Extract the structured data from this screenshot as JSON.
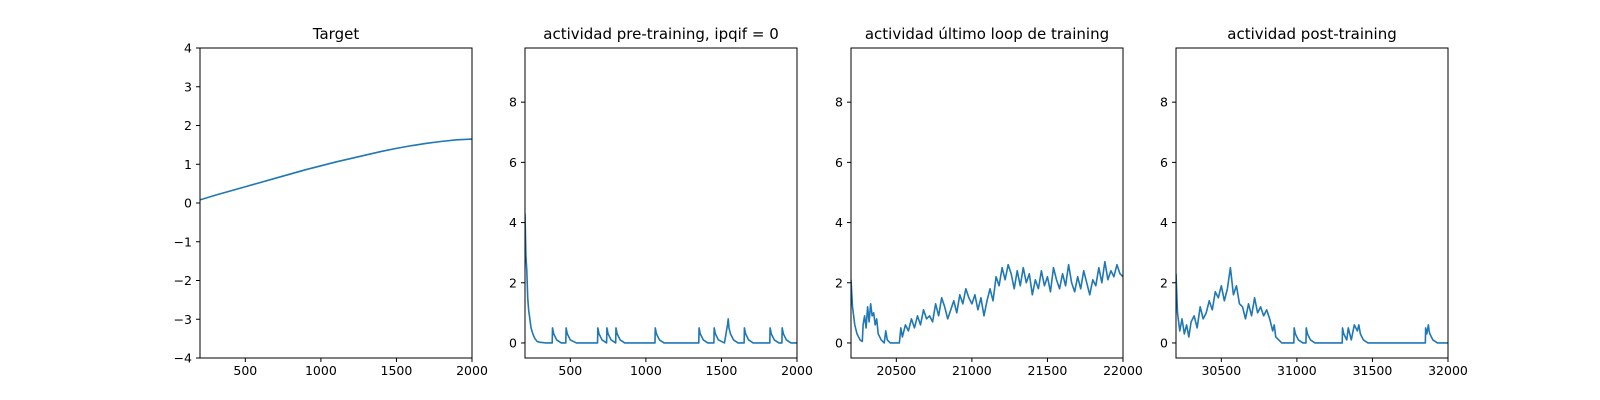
{
  "chart_data": [
    {
      "type": "line",
      "title": "Target",
      "xlabel": "",
      "ylabel": "",
      "xlim": [
        200,
        2000
      ],
      "ylim": [
        -4,
        4
      ],
      "xticks": [
        500,
        1000,
        1500,
        2000
      ],
      "yticks": [
        -4,
        -3,
        -2,
        -1,
        0,
        1,
        2,
        3,
        4
      ],
      "series": [
        {
          "color": "#1f77b4",
          "x": [
            200,
            300,
            400,
            500,
            600,
            700,
            800,
            900,
            1000,
            1100,
            1200,
            1300,
            1400,
            1500,
            1600,
            1700,
            1800,
            1900,
            2000
          ],
          "y": [
            0.08,
            0.2,
            0.31,
            0.42,
            0.53,
            0.64,
            0.75,
            0.86,
            0.96,
            1.06,
            1.15,
            1.24,
            1.33,
            1.41,
            1.48,
            1.54,
            1.59,
            1.63,
            1.65
          ]
        }
      ]
    },
    {
      "type": "line",
      "title": "actividad pre-training, ipqif = 0",
      "xlabel": "",
      "ylabel": "",
      "xlim": [
        200,
        2000
      ],
      "ylim": [
        -0.5,
        9.8
      ],
      "xticks": [
        500,
        1000,
        1500,
        2000
      ],
      "yticks": [
        0,
        2,
        4,
        6,
        8
      ],
      "series": [
        {
          "color": "#1f77b4",
          "x": [
            200,
            206,
            212,
            218,
            224,
            232,
            240,
            252,
            265,
            280,
            300,
            340,
            380,
            382,
            390,
            410,
            440,
            470,
            472,
            480,
            500,
            540,
            680,
            682,
            690,
            710,
            740,
            742,
            750,
            770,
            800,
            802,
            810,
            830,
            860,
            1060,
            1062,
            1070,
            1090,
            1120,
            1350,
            1352,
            1360,
            1380,
            1410,
            1450,
            1452,
            1460,
            1480,
            1520,
            1530,
            1540,
            1545,
            1550,
            1560,
            1580,
            1610,
            1650,
            1652,
            1660,
            1680,
            1710,
            1820,
            1822,
            1830,
            1850,
            1880,
            1900,
            1902,
            1910,
            1930,
            1960,
            2000
          ],
          "y": [
            4.3,
            2.9,
            2.4,
            1.5,
            1.1,
            0.8,
            0.5,
            0.3,
            0.15,
            0.05,
            0.02,
            0.0,
            0.0,
            0.5,
            0.3,
            0.1,
            0.0,
            0.0,
            0.5,
            0.3,
            0.1,
            0.0,
            0.0,
            0.5,
            0.3,
            0.1,
            0.0,
            0.5,
            0.3,
            0.1,
            0.0,
            0.5,
            0.3,
            0.1,
            0.0,
            0.0,
            0.5,
            0.3,
            0.1,
            0.0,
            0.0,
            0.5,
            0.3,
            0.1,
            0.0,
            0.0,
            0.5,
            0.3,
            0.1,
            0.0,
            0.3,
            0.6,
            0.8,
            0.5,
            0.3,
            0.1,
            0.0,
            0.0,
            0.5,
            0.3,
            0.1,
            0.0,
            0.0,
            0.5,
            0.3,
            0.1,
            0.0,
            0.0,
            0.5,
            0.3,
            0.1,
            0.0,
            0.0
          ]
        }
      ]
    },
    {
      "type": "line",
      "title": "actividad último loop de training",
      "xlabel": "",
      "ylabel": "",
      "xlim": [
        20200,
        22000
      ],
      "ylim": [
        -0.5,
        9.8
      ],
      "xticks": [
        20500,
        21000,
        21500,
        22000
      ],
      "yticks": [
        0,
        2,
        4,
        6,
        8
      ],
      "series": [
        {
          "color": "#1f77b4",
          "x": [
            20200,
            20210,
            20225,
            20240,
            20260,
            20275,
            20280,
            20290,
            20300,
            20310,
            20320,
            20330,
            20340,
            20350,
            20360,
            20370,
            20380,
            20400,
            20420,
            20430,
            20440,
            20460,
            20480,
            20520,
            20530,
            20540,
            20560,
            20580,
            20600,
            20620,
            20640,
            20660,
            20680,
            20700,
            20720,
            20740,
            20760,
            20780,
            20800,
            20820,
            20840,
            20860,
            20880,
            20900,
            20920,
            20940,
            20960,
            20980,
            21000,
            21020,
            21040,
            21060,
            21080,
            21100,
            21120,
            21140,
            21160,
            21180,
            21200,
            21220,
            21240,
            21260,
            21280,
            21300,
            21320,
            21340,
            21360,
            21380,
            21400,
            21420,
            21440,
            21460,
            21480,
            21500,
            21520,
            21540,
            21560,
            21580,
            21600,
            21620,
            21640,
            21660,
            21680,
            21700,
            21720,
            21740,
            21760,
            21780,
            21800,
            21820,
            21840,
            21860,
            21880,
            21900,
            21920,
            21940,
            21960,
            21980,
            22000
          ],
          "y": [
            2.1,
            1.2,
            0.6,
            0.3,
            0.1,
            0.05,
            0.6,
            0.9,
            0.5,
            1.2,
            0.7,
            1.3,
            0.9,
            1.0,
            0.6,
            0.8,
            0.3,
            0.1,
            0.0,
            0.4,
            0.1,
            0.0,
            0.0,
            0.0,
            0.5,
            0.2,
            0.6,
            0.4,
            0.8,
            0.5,
            0.9,
            0.6,
            1.1,
            0.8,
            0.9,
            0.7,
            1.3,
            0.9,
            1.5,
            1.2,
            0.8,
            1.1,
            1.4,
            1.0,
            1.6,
            1.3,
            1.8,
            1.5,
            1.3,
            1.6,
            1.1,
            1.5,
            0.9,
            1.4,
            1.8,
            1.4,
            2.2,
            1.9,
            2.5,
            2.1,
            2.6,
            2.3,
            1.8,
            2.4,
            1.9,
            2.5,
            2.0,
            2.3,
            1.6,
            2.1,
            1.8,
            2.4,
            1.9,
            2.2,
            1.7,
            2.5,
            2.1,
            1.8,
            2.3,
            1.9,
            2.6,
            2.0,
            1.7,
            2.2,
            1.8,
            2.4,
            2.0,
            1.6,
            2.1,
            1.9,
            2.5,
            2.0,
            2.7,
            2.1,
            2.4,
            2.2,
            2.6,
            2.3,
            2.2
          ]
        }
      ]
    },
    {
      "type": "line",
      "title": "actividad post-training",
      "xlabel": "",
      "ylabel": "",
      "xlim": [
        30200,
        32000
      ],
      "ylim": [
        -0.5,
        9.8
      ],
      "xticks": [
        30500,
        31000,
        31500,
        32000
      ],
      "yticks": [
        0,
        2,
        4,
        6,
        8
      ],
      "series": [
        {
          "color": "#1f77b4",
          "x": [
            30200,
            30210,
            30225,
            30240,
            30255,
            30270,
            30285,
            30300,
            30320,
            30340,
            30360,
            30380,
            30400,
            30420,
            30440,
            30460,
            30480,
            30500,
            30520,
            30540,
            30560,
            30580,
            30600,
            30620,
            30640,
            30660,
            30680,
            30700,
            30720,
            30740,
            30760,
            30780,
            30800,
            30820,
            30840,
            30850,
            30860,
            30880,
            30900,
            30920,
            30950,
            30980,
            30982,
            30990,
            31010,
            31040,
            31060,
            31062,
            31070,
            31090,
            31120,
            31300,
            31302,
            31310,
            31330,
            31340,
            31350,
            31360,
            31380,
            31400,
            31410,
            31420,
            31440,
            31470,
            31500,
            31850,
            31852,
            31860,
            31870,
            31875,
            31880,
            31900,
            31930,
            31960,
            32000
          ],
          "y": [
            2.3,
            1.0,
            0.4,
            0.8,
            0.3,
            0.6,
            0.2,
            0.7,
            0.9,
            0.5,
            1.2,
            0.8,
            1.0,
            1.4,
            1.1,
            1.7,
            1.5,
            1.9,
            1.4,
            1.8,
            2.5,
            1.6,
            1.9,
            1.3,
            1.2,
            0.8,
            1.3,
            0.9,
            1.5,
            1.0,
            1.2,
            0.9,
            1.1,
            0.8,
            0.4,
            0.6,
            0.2,
            0.1,
            0.0,
            0.0,
            0.0,
            0.0,
            0.5,
            0.3,
            0.1,
            0.0,
            0.0,
            0.5,
            0.3,
            0.1,
            0.0,
            0.0,
            0.5,
            0.3,
            0.1,
            0.5,
            0.3,
            0.1,
            0.6,
            0.4,
            0.6,
            0.3,
            0.1,
            0.0,
            0.0,
            0.0,
            0.5,
            0.3,
            0.6,
            0.4,
            0.3,
            0.1,
            0.0,
            0.0,
            0.0
          ]
        }
      ]
    }
  ]
}
